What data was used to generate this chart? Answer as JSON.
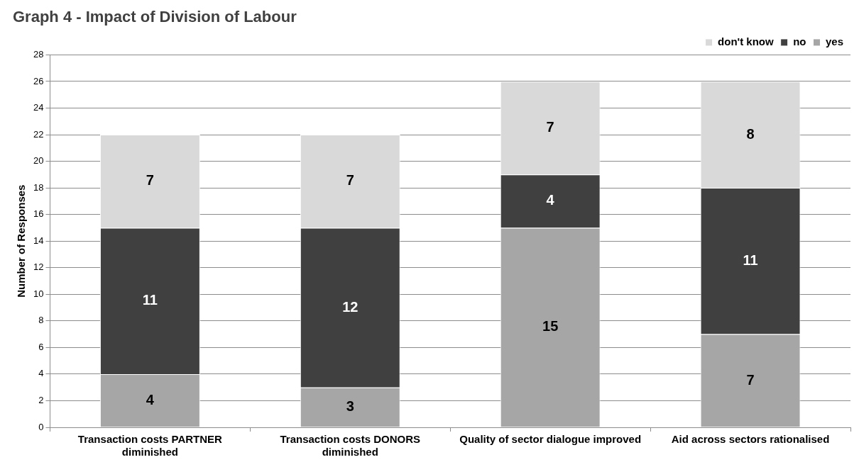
{
  "chart_data": {
    "type": "bar",
    "title": "Graph 4 - Impact of Division of Labour",
    "ylabel": "Number of Responses",
    "categories": [
      "Transaction costs PARTNER diminished",
      "Transaction costs DONORS diminished",
      "Quality of sector dialogue improved",
      "Aid across sectors rationalised"
    ],
    "series": [
      {
        "name": "yes",
        "color": "#a6a6a6",
        "values": [
          4,
          3,
          15,
          7
        ]
      },
      {
        "name": "no",
        "color": "#404040",
        "values": [
          11,
          12,
          4,
          11
        ]
      },
      {
        "name": "don't know",
        "color": "#d9d9d9",
        "values": [
          7,
          7,
          7,
          8
        ]
      }
    ],
    "stacked": true,
    "ylim": [
      0,
      28
    ],
    "yticks": [
      0,
      2,
      4,
      6,
      8,
      10,
      12,
      14,
      16,
      18,
      20,
      22,
      24,
      26,
      28
    ],
    "grid": "y",
    "legend": "top right",
    "data_labels": true
  }
}
